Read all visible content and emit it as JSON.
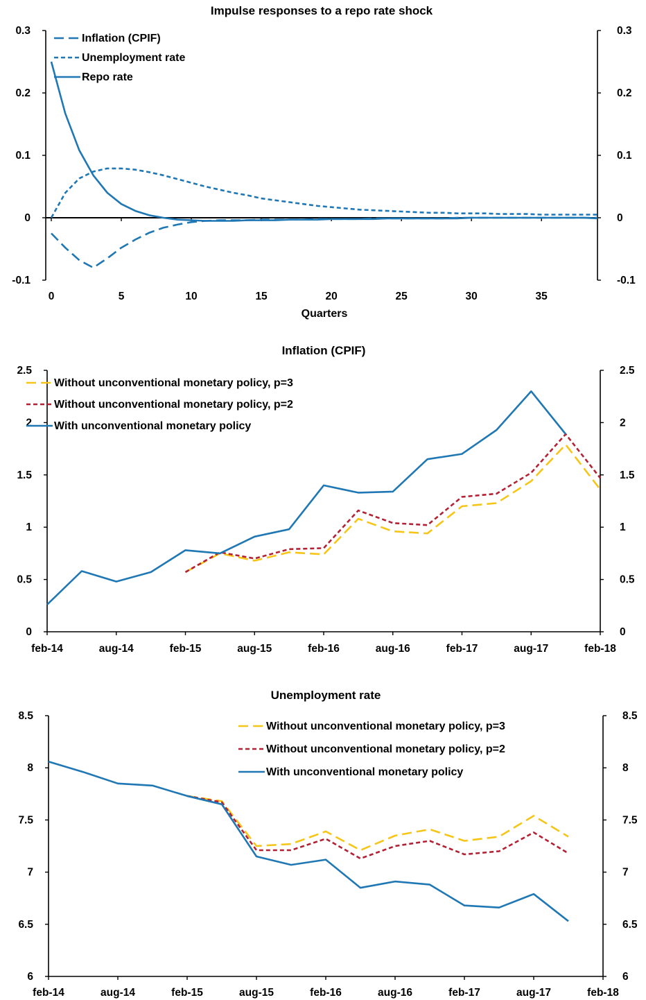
{
  "colors": {
    "blue": "#1f77b4",
    "gold": "#f5c518",
    "red": "#b22234",
    "axis": "#000000"
  },
  "chart_data": [
    {
      "type": "line",
      "title": "Impulse responses to a repo rate shock",
      "xlabel": "Quarters",
      "xlim": [
        0,
        39
      ],
      "ylim": [
        -0.1,
        0.3
      ],
      "x_ticks": [
        0,
        5,
        10,
        15,
        20,
        25,
        30,
        35
      ],
      "x_tick_labels": [
        "0",
        "5",
        "10",
        "15",
        "20",
        "25",
        "30",
        "35"
      ],
      "y_ticks": [
        -0.1,
        0,
        0.1,
        0.2,
        0.3
      ],
      "y_tick_labels": [
        "-0.1",
        "0",
        "0.1",
        "0.2",
        "0.3"
      ],
      "zero_line": true,
      "legend_position": "top-left",
      "x": [
        0,
        1,
        2,
        3,
        4,
        5,
        6,
        7,
        8,
        9,
        10,
        11,
        12,
        13,
        14,
        15,
        16,
        17,
        18,
        19,
        20,
        21,
        22,
        23,
        24,
        25,
        26,
        27,
        28,
        29,
        30,
        31,
        32,
        33,
        34,
        35,
        36,
        37,
        38,
        39
      ],
      "series": [
        {
          "name": "Inflation (CPIF)",
          "color": "#1f77b4",
          "dash": "longdash",
          "values": [
            -0.025,
            -0.048,
            -0.068,
            -0.08,
            -0.065,
            -0.048,
            -0.035,
            -0.024,
            -0.016,
            -0.011,
            -0.007,
            -0.005,
            -0.004,
            -0.004,
            -0.004,
            -0.003,
            -0.003,
            -0.003,
            -0.003,
            -0.002,
            -0.002,
            -0.002,
            -0.002,
            -0.001,
            -0.001,
            -0.001,
            -0.001,
            -0.001,
            -0.001,
            0,
            0,
            0,
            0,
            0,
            0,
            0,
            0,
            0,
            0,
            0
          ]
        },
        {
          "name": "Unemployment rate",
          "color": "#1f77b4",
          "dash": "shortdash",
          "values": [
            0,
            0.04,
            0.063,
            0.074,
            0.079,
            0.079,
            0.077,
            0.073,
            0.068,
            0.062,
            0.056,
            0.05,
            0.045,
            0.04,
            0.036,
            0.031,
            0.028,
            0.025,
            0.022,
            0.019,
            0.017,
            0.015,
            0.013,
            0.012,
            0.011,
            0.01,
            0.009,
            0.008,
            0.008,
            0.007,
            0.007,
            0.007,
            0.006,
            0.006,
            0.006,
            0.005,
            0.005,
            0.005,
            0.005,
            0.005
          ]
        },
        {
          "name": "Repo rate",
          "color": "#1f77b4",
          "dash": "solid",
          "values": [
            0.25,
            0.167,
            0.108,
            0.068,
            0.04,
            0.022,
            0.011,
            0.004,
            0.0,
            -0.003,
            -0.004,
            -0.005,
            -0.005,
            -0.005,
            -0.004,
            -0.004,
            -0.004,
            -0.003,
            -0.003,
            -0.003,
            -0.002,
            -0.002,
            -0.002,
            -0.002,
            -0.001,
            -0.001,
            -0.001,
            -0.001,
            -0.001,
            -0.001,
            0,
            0,
            0,
            0,
            0,
            0,
            0,
            0,
            0,
            -0.001
          ]
        }
      ]
    },
    {
      "type": "line",
      "title": "Inflation (CPIF)",
      "xlabel": "",
      "x_tick_labels": [
        "feb-14",
        "aug-14",
        "feb-15",
        "aug-15",
        "feb-16",
        "aug-16",
        "feb-17",
        "aug-17",
        "feb-18"
      ],
      "ylim": [
        0,
        2.5
      ],
      "y_ticks": [
        0,
        0.5,
        1,
        1.5,
        2,
        2.5
      ],
      "y_tick_labels": [
        "0",
        "0.5",
        "1",
        "1.5",
        "2",
        "2.5"
      ],
      "legend_position": "top-left",
      "series": [
        {
          "name": "Without unconventional monetary policy, p=3",
          "color": "#f5c518",
          "dash": "longdash",
          "start_index": 4,
          "values": [
            0.57,
            0.75,
            0.68,
            0.76,
            0.74,
            1.08,
            0.96,
            0.94,
            1.2,
            1.23,
            1.44,
            1.79,
            1.36
          ]
        },
        {
          "name": "Without unconventional monetary policy, p=2",
          "color": "#b22234",
          "dash": "shortdash",
          "start_index": 4,
          "values": [
            0.57,
            0.76,
            0.7,
            0.79,
            0.8,
            1.16,
            1.04,
            1.02,
            1.29,
            1.32,
            1.52,
            1.89,
            1.47
          ]
        },
        {
          "name": "With unconventional monetary policy",
          "color": "#1f77b4",
          "dash": "solid",
          "start_index": 0,
          "values": [
            0.26,
            0.58,
            0.48,
            0.57,
            0.78,
            0.75,
            0.91,
            0.98,
            1.4,
            1.33,
            1.34,
            1.65,
            1.7,
            1.93,
            2.3,
            1.89
          ]
        }
      ]
    },
    {
      "type": "line",
      "title": "Unemployment rate",
      "xlabel": "",
      "x_tick_labels": [
        "feb-14",
        "aug-14",
        "feb-15",
        "aug-15",
        "feb-16",
        "aug-16",
        "feb-17",
        "aug-17",
        "feb-18"
      ],
      "ylim": [
        6,
        8.5
      ],
      "y_ticks": [
        6,
        6.5,
        7,
        7.5,
        8,
        8.5
      ],
      "y_tick_labels": [
        "6",
        "6.5",
        "7",
        "7.5",
        "8",
        "8.5"
      ],
      "legend_position": "top-right",
      "series": [
        {
          "name": "Without unconventional monetary policy, p=3",
          "color": "#f5c518",
          "dash": "longdash",
          "start_index": 4,
          "values": [
            7.73,
            7.68,
            7.25,
            7.27,
            7.39,
            7.21,
            7.35,
            7.41,
            7.3,
            7.34,
            7.54,
            7.34
          ]
        },
        {
          "name": "Without unconventional monetary policy, p=2",
          "color": "#b22234",
          "dash": "shortdash",
          "start_index": 4,
          "values": [
            7.73,
            7.67,
            7.21,
            7.21,
            7.32,
            7.13,
            7.25,
            7.3,
            7.17,
            7.2,
            7.38,
            7.18
          ]
        },
        {
          "name": "With unconventional monetary policy",
          "color": "#1f77b4",
          "dash": "solid",
          "start_index": 0,
          "values": [
            8.06,
            7.96,
            7.85,
            7.83,
            7.73,
            7.65,
            7.15,
            7.07,
            7.12,
            6.85,
            6.91,
            6.88,
            6.68,
            6.66,
            6.79,
            6.53
          ]
        }
      ]
    }
  ]
}
